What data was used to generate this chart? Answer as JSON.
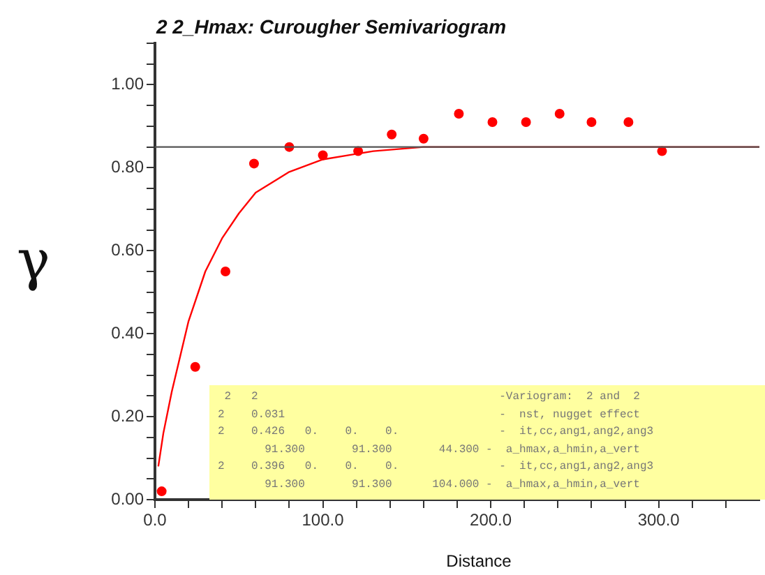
{
  "chart_data": {
    "type": "scatter",
    "title": "2 2_Hmax: Curougher Semivariogram",
    "xlabel": "Distance",
    "ylabel": "γ",
    "xlim": [
      0,
      360
    ],
    "ylim": [
      0,
      1.1
    ],
    "xticks": [
      {
        "value": 0,
        "label": "0.0"
      },
      {
        "value": 20,
        "label": null
      },
      {
        "value": 40,
        "label": null
      },
      {
        "value": 60,
        "label": null
      },
      {
        "value": 80,
        "label": null
      },
      {
        "value": 100,
        "label": "100.0"
      },
      {
        "value": 120,
        "label": null
      },
      {
        "value": 140,
        "label": null
      },
      {
        "value": 160,
        "label": null
      },
      {
        "value": 180,
        "label": null
      },
      {
        "value": 200,
        "label": "200.0"
      },
      {
        "value": 220,
        "label": null
      },
      {
        "value": 240,
        "label": null
      },
      {
        "value": 260,
        "label": null
      },
      {
        "value": 280,
        "label": null
      },
      {
        "value": 300,
        "label": "300.0"
      },
      {
        "value": 320,
        "label": null
      },
      {
        "value": 340,
        "label": null
      }
    ],
    "yticks": [
      {
        "value": 0,
        "label": "0.00"
      },
      {
        "value": 0.05,
        "label": null
      },
      {
        "value": 0.1,
        "label": null
      },
      {
        "value": 0.15,
        "label": null
      },
      {
        "value": 0.2,
        "label": "0.20"
      },
      {
        "value": 0.25,
        "label": null
      },
      {
        "value": 0.3,
        "label": null
      },
      {
        "value": 0.35,
        "label": null
      },
      {
        "value": 0.4,
        "label": "0.40"
      },
      {
        "value": 0.45,
        "label": null
      },
      {
        "value": 0.5,
        "label": null
      },
      {
        "value": 0.55,
        "label": null
      },
      {
        "value": 0.6,
        "label": "0.60"
      },
      {
        "value": 0.65,
        "label": null
      },
      {
        "value": 0.7,
        "label": null
      },
      {
        "value": 0.75,
        "label": null
      },
      {
        "value": 0.8,
        "label": "0.80"
      },
      {
        "value": 0.85,
        "label": null
      },
      {
        "value": 0.9,
        "label": null
      },
      {
        "value": 0.95,
        "label": null
      },
      {
        "value": 1.0,
        "label": "1.00"
      },
      {
        "value": 1.05,
        "label": null
      },
      {
        "value": 1.1,
        "label": null
      }
    ],
    "grid": false,
    "legend": false,
    "marker": "circle",
    "series": [
      {
        "color": "#ff0000",
        "x": [
          4
        ],
        "values": [
          0.02
        ]
      },
      {
        "color": "#ff0000",
        "x": [
          24,
          42,
          59,
          80,
          100,
          121,
          141,
          160,
          181,
          201,
          221,
          241,
          260,
          282,
          302
        ],
        "values": [
          0.32,
          0.55,
          0.81,
          0.85,
          0.83,
          0.84,
          0.88,
          0.87,
          0.93,
          0.91,
          0.91,
          0.93,
          0.91,
          0.91,
          0.84
        ]
      },
      {
        "type": "line",
        "color": "#ff0000",
        "marker": "none",
        "x": [
          2,
          5,
          10,
          20,
          30,
          40,
          50,
          60,
          80,
          100,
          130,
          160,
          200,
          360
        ],
        "values": [
          0.08,
          0.16,
          0.26,
          0.43,
          0.55,
          0.63,
          0.69,
          0.74,
          0.79,
          0.82,
          0.84,
          0.85,
          0.85,
          0.85
        ]
      }
    ],
    "ref_lines": [
      {
        "axis": "y",
        "value": 0.85,
        "color": "#555555"
      }
    ],
    "annotations": [
      " 2   2                                    -Variogram:  2 and  2",
      "2    0.031                                -  nst, nugget effect",
      "2    0.426   0.    0.    0.               -  it,cc,ang1,ang2,ang3",
      "       91.300       91.300       44.300 -  a_hmax,a_hmin,a_vert",
      "2    0.396   0.    0.    0.               -  it,cc,ang1,ang2,ang3",
      "       91.300       91.300      104.000 -  a_hmax,a_hmin,a_vert"
    ]
  }
}
